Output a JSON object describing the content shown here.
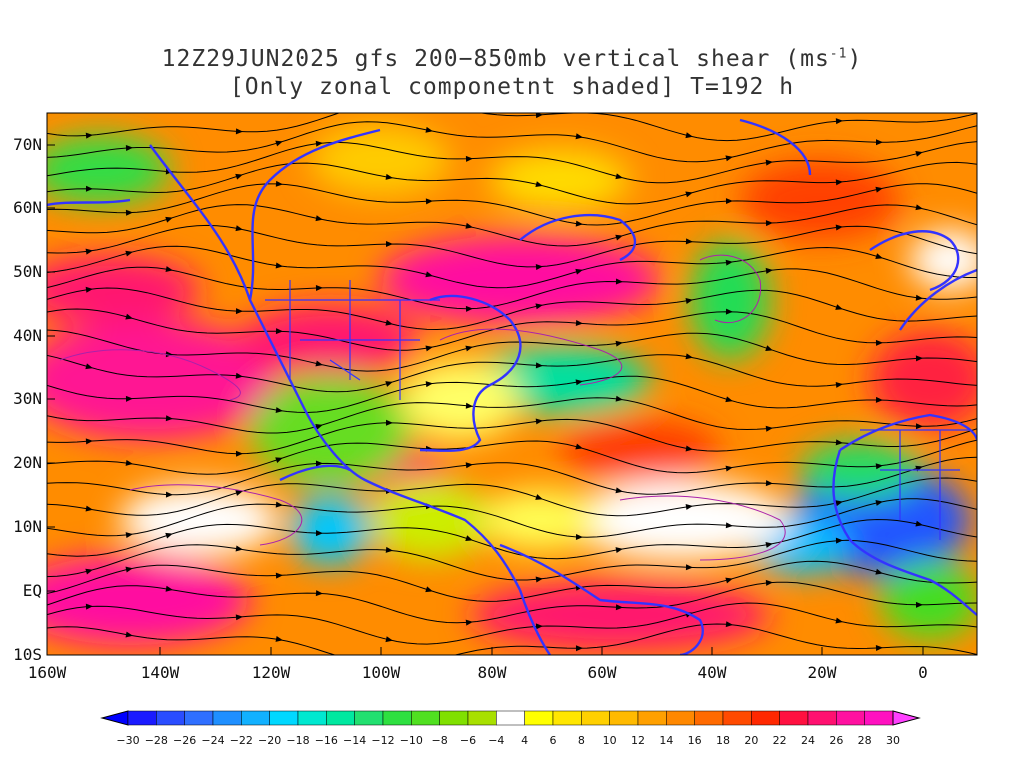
{
  "title": {
    "line1_prefix": "12Z29JUN2025 gfs 200−850mb vertical shear (ms",
    "line1_sup": "-1",
    "line1_suffix": ")",
    "line2": "[Only zonal componetnt shaded] T=192 h"
  },
  "axes": {
    "lat_labels": [
      "70N",
      "60N",
      "50N",
      "40N",
      "30N",
      "20N",
      "10N",
      "EQ",
      "10S"
    ],
    "lon_labels": [
      "160W",
      "140W",
      "120W",
      "100W",
      "80W",
      "60W",
      "40W",
      "20W",
      "0"
    ]
  },
  "colorbar": {
    "labels": [
      "-30",
      "-28",
      "-26",
      "-24",
      "-22",
      "-20",
      "-18",
      "-16",
      "-14",
      "-12",
      "-10",
      "-8",
      "-6",
      "-4",
      "4",
      "6",
      "8",
      "10",
      "12",
      "14",
      "16",
      "18",
      "20",
      "22",
      "24",
      "26",
      "28",
      "30"
    ],
    "colors": [
      "#1a1aff",
      "#2a4dff",
      "#2f6fff",
      "#1f8fff",
      "#12b1ff",
      "#00d8ff",
      "#00e8d0",
      "#00e8a0",
      "#22e070",
      "#2ee040",
      "#50e020",
      "#80e000",
      "#a8e000",
      "#ffffff",
      "#ffff00",
      "#ffe600",
      "#ffd000",
      "#ffba00",
      "#ffa000",
      "#ff8800",
      "#ff6a00",
      "#ff4a00",
      "#ff2800",
      "#ff1040",
      "#ff1070",
      "#ff10a0",
      "#ff10c0"
    ],
    "left_arrow_color": "#0000ff",
    "right_arrow_color": "#ff40ff"
  }
}
